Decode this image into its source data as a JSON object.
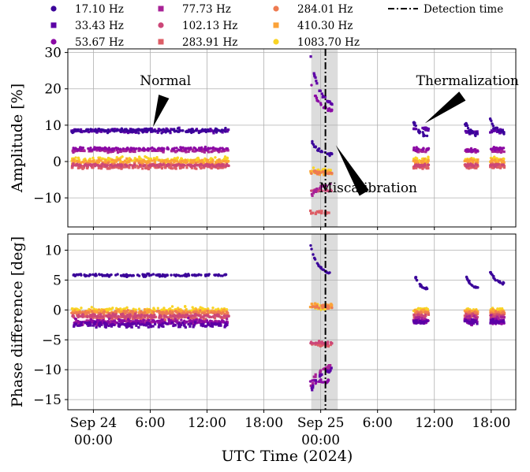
{
  "chart_data": {
    "type": "scatter",
    "x_axis": {
      "label": "UTC Time (2024)",
      "range_hours": [
        -2.7,
        44.6
      ],
      "ticks": [
        {
          "h": 0,
          "line1": "Sep 24",
          "line2": "00:00"
        },
        {
          "h": 6,
          "line1": "6:00",
          "line2": ""
        },
        {
          "h": 12,
          "line1": "12:00",
          "line2": ""
        },
        {
          "h": 18,
          "line1": "18:00",
          "line2": ""
        },
        {
          "h": 24,
          "line1": "Sep 25",
          "line2": "00:00"
        },
        {
          "h": 30,
          "line1": "6:00",
          "line2": ""
        },
        {
          "h": 36,
          "line1": "12:00",
          "line2": ""
        },
        {
          "h": 42,
          "line1": "18:00",
          "line2": ""
        }
      ]
    },
    "detection_time_h": 24.5,
    "shaded_region_h": [
      23.0,
      25.8
    ],
    "legend": [
      {
        "label": "17.10 Hz",
        "marker": "circle",
        "color": "#3b049a"
      },
      {
        "label": "33.43 Hz",
        "marker": "square",
        "color": "#5c01a6"
      },
      {
        "label": "53.67 Hz",
        "marker": "circle",
        "color": "#8b0aa5"
      },
      {
        "label": "77.73 Hz",
        "marker": "square",
        "color": "#a82296"
      },
      {
        "label": "102.13 Hz",
        "marker": "circle",
        "color": "#cc4778"
      },
      {
        "label": "283.91 Hz",
        "marker": "square",
        "color": "#dd5e66"
      },
      {
        "label": "284.01 Hz",
        "marker": "circle",
        "color": "#ee7b51"
      },
      {
        "label": "410.30 Hz",
        "marker": "square",
        "color": "#fba238"
      },
      {
        "label": "1083.70 Hz",
        "marker": "circle",
        "color": "#f9d424"
      },
      {
        "label": "Detection time",
        "marker": "dashdot-line",
        "color": "#000000"
      }
    ],
    "observation_segments_h": [
      [
        -2.3,
        14.3
      ],
      [
        22.9,
        25.2
      ],
      [
        33.8,
        35.4
      ],
      [
        39.2,
        40.6
      ],
      [
        41.9,
        43.4
      ]
    ],
    "panels": [
      {
        "id": "amplitude",
        "ylabel": "Amplitude [%]",
        "ylim": [
          -18,
          31
        ],
        "yticks": [
          30,
          20,
          10,
          0,
          -10
        ],
        "ytick_labels": [
          "30",
          "20",
          "10",
          "0",
          "−10"
        ],
        "series": [
          {
            "name": "17.10 Hz",
            "level_normal": 8.5,
            "level_segments": [
              8.5,
              3.0,
              7.5,
              7.0,
              8.0
            ],
            "transient": [
              {
                "seg": 1,
                "start": 6.5,
                "end": 2.0
              },
              {
                "seg": 2,
                "start": 11.0,
                "end": 7.0
              },
              {
                "seg": 3,
                "start": 11.0,
                "end": 7.5
              },
              {
                "seg": 4,
                "start": 11.5,
                "end": 8.0
              }
            ],
            "noise": 1.0
          },
          {
            "name": "33.43 Hz",
            "level_normal": 8.5,
            "level_segments": [
              8.5,
              17.0,
              9.0,
              8.0,
              8.5
            ],
            "transient": [
              {
                "seg": 1,
                "start": 30.0,
                "end": 16.0
              }
            ],
            "noise": 0.9
          },
          {
            "name": "53.67 Hz",
            "level_normal": 3.5,
            "level_segments": [
              3.5,
              15.0,
              3.5,
              3.0,
              3.5
            ],
            "transient": [
              {
                "seg": 1,
                "start": 22.0,
                "end": 14.0
              }
            ],
            "noise": 0.7
          },
          {
            "name": "77.73 Hz",
            "level_normal": 3.0,
            "level_segments": [
              3.0,
              -7.0,
              3.0,
              3.0,
              3.0
            ],
            "transient": [
              {
                "seg": 1,
                "start": -10.0,
                "end": -6.0
              }
            ],
            "noise": 0.7
          },
          {
            "name": "102.13 Hz",
            "level_normal": -1.0,
            "level_segments": [
              -1.0,
              -8.0,
              -1.0,
              -1.0,
              -1.0
            ],
            "transient": [],
            "noise": 0.6
          },
          {
            "name": "283.91 Hz",
            "level_normal": -1.5,
            "level_segments": [
              -1.5,
              -14.0,
              -1.5,
              -1.5,
              -1.5
            ],
            "transient": [],
            "noise": 0.8
          },
          {
            "name": "284.01 Hz",
            "level_normal": -1.0,
            "level_segments": [
              -1.0,
              -3.0,
              -1.0,
              -1.0,
              -1.0
            ],
            "transient": [],
            "noise": 0.8
          },
          {
            "name": "410.30 Hz",
            "level_normal": 0.0,
            "level_segments": [
              0.0,
              -3.0,
              0.0,
              0.0,
              0.0
            ],
            "transient": [],
            "noise": 1.0
          },
          {
            "name": "1083.70 Hz",
            "level_normal": 0.5,
            "level_segments": [
              0.5,
              -2.5,
              0.5,
              0.5,
              0.5
            ],
            "transient": [],
            "noise": 1.2
          }
        ],
        "annotations": [
          {
            "text": "Normal",
            "text_h": 7.6,
            "text_v": 21,
            "tip_h": 6.3,
            "tip_v": 9.5
          },
          {
            "text": "Thermalization",
            "text_h": 39.5,
            "text_v": 21,
            "tip_h": 35.0,
            "tip_v": 10.5
          },
          {
            "text": "Miscalibration",
            "text_h": 29.0,
            "text_v": -8.5,
            "tip_h": 25.6,
            "tip_v": 4.5
          }
        ]
      },
      {
        "id": "phase",
        "ylabel": "Phase difference [deg]",
        "ylim": [
          -16.7,
          12.7
        ],
        "yticks": [
          10,
          5,
          0,
          -5,
          -10,
          -15
        ],
        "ytick_labels": [
          "10",
          "5",
          "0",
          "−5",
          "−10",
          "−15"
        ],
        "series": [
          {
            "name": "17.10 Hz",
            "level_normal": 5.8,
            "level_segments": [
              5.8,
              6.5,
              4.0,
              4.0,
              4.5
            ],
            "transient": [
              {
                "seg": 1,
                "start": 11.0,
                "end": 6.0
              },
              {
                "seg": 2,
                "start": 6.5,
                "end": 3.5
              },
              {
                "seg": 3,
                "start": 6.5,
                "end": 3.7
              },
              {
                "seg": 4,
                "start": 6.5,
                "end": 4.5
              }
            ],
            "noise": 0.35
          },
          {
            "name": "33.43 Hz",
            "level_normal": -2.5,
            "level_segments": [
              -2.5,
              -12.5,
              -2.0,
              -2.0,
              -2.0
            ],
            "transient": [
              {
                "seg": 1,
                "start": -14.0,
                "end": -10.0
              }
            ],
            "noise": 0.7
          },
          {
            "name": "53.67 Hz",
            "level_normal": -2.0,
            "level_segments": [
              -2.0,
              -12.0,
              -2.0,
              -2.0,
              -2.0
            ],
            "transient": [],
            "noise": 0.7
          },
          {
            "name": "77.73 Hz",
            "level_normal": -2.0,
            "level_segments": [
              -2.0,
              -11.5,
              -1.5,
              -1.5,
              -1.5
            ],
            "transient": [
              {
                "seg": 1,
                "start": -13.0,
                "end": -9.5
              }
            ],
            "noise": 0.7
          },
          {
            "name": "102.13 Hz",
            "level_normal": -1.0,
            "level_segments": [
              -1.0,
              -5.5,
              -1.0,
              -1.0,
              -1.0
            ],
            "transient": [],
            "noise": 0.5
          },
          {
            "name": "283.91 Hz",
            "level_normal": -1.2,
            "level_segments": [
              -1.2,
              -5.8,
              -1.0,
              -1.0,
              -1.0
            ],
            "transient": [],
            "noise": 0.6
          },
          {
            "name": "284.01 Hz",
            "level_normal": -0.5,
            "level_segments": [
              -0.5,
              0.5,
              -0.5,
              -0.5,
              -0.5
            ],
            "transient": [],
            "noise": 0.5
          },
          {
            "name": "410.30 Hz",
            "level_normal": -0.3,
            "level_segments": [
              -0.3,
              0.8,
              -0.3,
              -0.3,
              -0.3
            ],
            "transient": [],
            "noise": 0.5
          },
          {
            "name": "1083.70 Hz",
            "level_normal": 0.0,
            "level_segments": [
              0.0,
              0.5,
              0.0,
              0.0,
              0.0
            ],
            "transient": [],
            "noise": 0.7
          }
        ],
        "annotations": []
      }
    ],
    "grid": true
  }
}
